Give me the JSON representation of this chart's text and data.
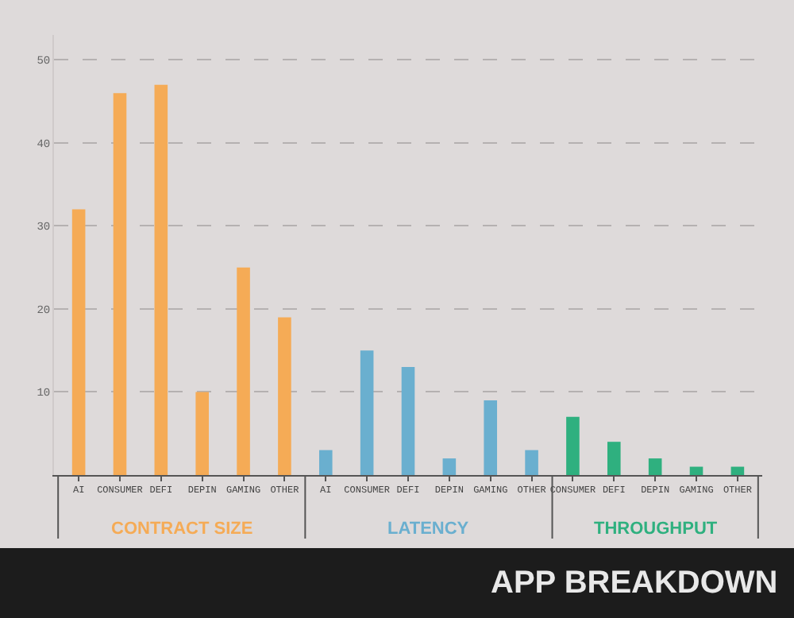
{
  "chart_data": {
    "type": "bar",
    "title": "APP BREAKDOWN",
    "categories": [
      "AI",
      "CONSUMER",
      "DEFI",
      "DEPIN",
      "GAMING",
      "OTHER",
      "AI",
      "CONSUMER",
      "DEFI",
      "DEPIN",
      "GAMING",
      "OTHER",
      "CONSUMER",
      "DEFI",
      "DEPIN",
      "GAMING",
      "OTHER"
    ],
    "series": [
      {
        "name": "CONTRACT SIZE",
        "color": "#f5ab56",
        "values": [
          32,
          46,
          47,
          10,
          25,
          19,
          null,
          null,
          null,
          null,
          null,
          null,
          null,
          null,
          null,
          null,
          null
        ]
      },
      {
        "name": "LATENCY",
        "color": "#6aafcf",
        "values": [
          null,
          null,
          null,
          null,
          null,
          null,
          3,
          15,
          13,
          2,
          9,
          3,
          null,
          null,
          null,
          null,
          null
        ]
      },
      {
        "name": "THROUGHPUT",
        "color": "#2fb07f",
        "values": [
          null,
          null,
          null,
          null,
          null,
          null,
          null,
          null,
          null,
          null,
          null,
          null,
          7,
          4,
          2,
          1,
          1
        ]
      }
    ],
    "ylim": [
      0,
      53
    ],
    "yticks": [
      10,
      20,
      30,
      40,
      50
    ],
    "grid": "y",
    "legend": false
  }
}
